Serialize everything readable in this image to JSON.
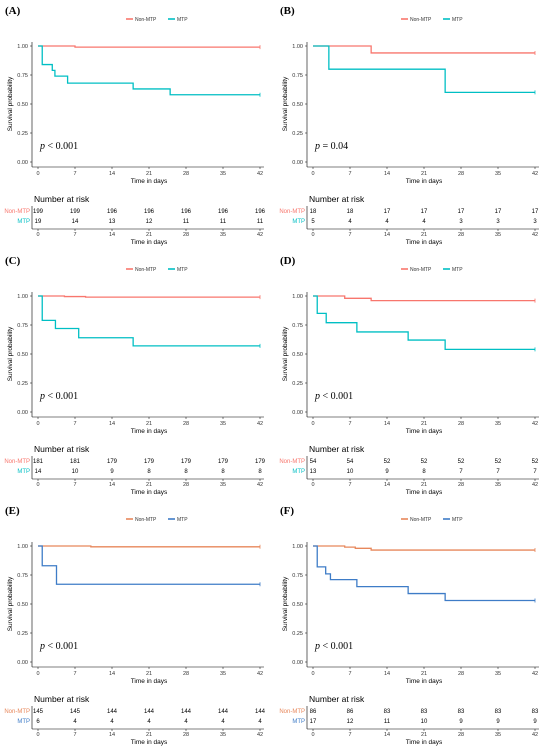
{
  "colors": {
    "non_mtp": "#F8766D",
    "mtp": "#00BFC4",
    "mtp_blue": "#3E7CC7",
    "non_mtp_orange": "#E7875B"
  },
  "chart_data": [
    {
      "type": "line",
      "step": true,
      "panel": "(A)",
      "legend": [
        "Non-MTP",
        "MTP"
      ],
      "legend_position": "top-center",
      "ylabel": "Survival probability",
      "xlabel": "Time in days",
      "xlim": [
        0,
        42
      ],
      "ylim": [
        0,
        1
      ],
      "xticks": [
        "0",
        "7",
        "14",
        "21",
        "28",
        "35",
        "42"
      ],
      "yticks": [
        "0.00",
        "0.25",
        "0.50",
        "0.75",
        "1.00"
      ],
      "pvalue_prefix": "p",
      "pvalue_text": " < 0.001",
      "series": [
        {
          "name": "Non-MTP",
          "color": "#F8766D",
          "x": [
            0,
            7,
            42
          ],
          "y": [
            1.0,
            0.99,
            0.99
          ]
        },
        {
          "name": "MTP",
          "color": "#00BFC4",
          "x": [
            0,
            0.8,
            2.7,
            3.2,
            5.6,
            18,
            25,
            42
          ],
          "y": [
            1.0,
            0.84,
            0.79,
            0.74,
            0.68,
            0.63,
            0.58,
            0.58
          ]
        }
      ],
      "risk_table": {
        "title": "Number at risk",
        "xlabel": "Time in days",
        "x": [
          "0",
          "7",
          "14",
          "21",
          "28",
          "35",
          "42"
        ],
        "rows": [
          {
            "group": "Non-MTP",
            "color": "#F8766D",
            "values": [
              "199",
              "199",
              "196",
              "196",
              "196",
              "196",
              "196"
            ]
          },
          {
            "group": "MTP",
            "color": "#00BFC4",
            "values": [
              "19",
              "14",
              "13",
              "12",
              "11",
              "11",
              "11"
            ]
          }
        ]
      }
    },
    {
      "type": "line",
      "step": true,
      "panel": "(B)",
      "legend": [
        "Non-MTP",
        "MTP"
      ],
      "legend_position": "top-center",
      "ylabel": "Survival probability",
      "xlabel": "Time in days",
      "xlim": [
        0,
        42
      ],
      "ylim": [
        0,
        1
      ],
      "xticks": [
        "0",
        "7",
        "14",
        "21",
        "28",
        "35",
        "42"
      ],
      "yticks": [
        "0.00",
        "0.25",
        "0.50",
        "0.75",
        "1.00"
      ],
      "pvalue_prefix": "p",
      "pvalue_text": " = 0.04",
      "series": [
        {
          "name": "Non-MTP",
          "color": "#F8766D",
          "x": [
            0,
            11,
            42
          ],
          "y": [
            1.0,
            0.94,
            0.94
          ]
        },
        {
          "name": "MTP",
          "color": "#00BFC4",
          "x": [
            0,
            3,
            25,
            42
          ],
          "y": [
            1.0,
            0.8,
            0.6,
            0.6
          ]
        }
      ],
      "risk_table": {
        "title": "Number at risk",
        "xlabel": "Time in days",
        "x": [
          "0",
          "7",
          "14",
          "21",
          "28",
          "35",
          "42"
        ],
        "rows": [
          {
            "group": "Non-MTP",
            "color": "#F8766D",
            "values": [
              "18",
              "18",
              "17",
              "17",
              "17",
              "17",
              "17"
            ]
          },
          {
            "group": "MTP",
            "color": "#00BFC4",
            "values": [
              "5",
              "4",
              "4",
              "4",
              "3",
              "3",
              "3"
            ]
          }
        ]
      }
    },
    {
      "type": "line",
      "step": true,
      "panel": "(C)",
      "legend": [
        "Non-MTP",
        "MTP"
      ],
      "legend_position": "top-center",
      "ylabel": "Survival probability",
      "xlabel": "Time in days",
      "xlim": [
        0,
        42
      ],
      "ylim": [
        0,
        1
      ],
      "xticks": [
        "0",
        "7",
        "14",
        "21",
        "28",
        "35",
        "42"
      ],
      "yticks": [
        "0.00",
        "0.25",
        "0.50",
        "0.75",
        "1.00"
      ],
      "pvalue_prefix": "p",
      "pvalue_text": " < 0.001",
      "series": [
        {
          "name": "Non-MTP",
          "color": "#F8766D",
          "x": [
            0,
            5,
            9,
            42
          ],
          "y": [
            1.0,
            0.995,
            0.99,
            0.99
          ]
        },
        {
          "name": "MTP",
          "color": "#00BFC4",
          "x": [
            0,
            0.8,
            3.3,
            7.7,
            18,
            42
          ],
          "y": [
            1.0,
            0.79,
            0.72,
            0.64,
            0.57,
            0.57
          ]
        }
      ],
      "risk_table": {
        "title": "Number at risk",
        "xlabel": "Time in days",
        "x": [
          "0",
          "7",
          "14",
          "21",
          "28",
          "35",
          "42"
        ],
        "rows": [
          {
            "group": "Non-MTP",
            "color": "#F8766D",
            "values": [
              "181",
              "181",
              "179",
              "179",
              "179",
              "179",
              "179"
            ]
          },
          {
            "group": "MTP",
            "color": "#00BFC4",
            "values": [
              "14",
              "10",
              "9",
              "8",
              "8",
              "8",
              "8"
            ]
          }
        ]
      }
    },
    {
      "type": "line",
      "step": true,
      "panel": "(D)",
      "legend": [
        "Non-MTP",
        "MTP"
      ],
      "legend_position": "top-center",
      "ylabel": "Survival probability",
      "xlabel": "Time in days",
      "xlim": [
        0,
        42
      ],
      "ylim": [
        0,
        1
      ],
      "xticks": [
        "0",
        "7",
        "14",
        "21",
        "28",
        "35",
        "42"
      ],
      "yticks": [
        "0.00",
        "0.25",
        "0.50",
        "0.75",
        "1.00"
      ],
      "pvalue_prefix": "p",
      "pvalue_text": " < 0.001",
      "series": [
        {
          "name": "Non-MTP",
          "color": "#F8766D",
          "x": [
            0,
            6,
            11,
            42
          ],
          "y": [
            1.0,
            0.98,
            0.96,
            0.96
          ]
        },
        {
          "name": "MTP",
          "color": "#00BFC4",
          "x": [
            0,
            0.8,
            2.5,
            8.3,
            18,
            25,
            42
          ],
          "y": [
            1.0,
            0.85,
            0.77,
            0.69,
            0.62,
            0.54,
            0.54
          ]
        }
      ],
      "risk_table": {
        "title": "Number at risk",
        "xlabel": "Time in days",
        "x": [
          "0",
          "7",
          "14",
          "21",
          "28",
          "35",
          "42"
        ],
        "rows": [
          {
            "group": "Non-MTP",
            "color": "#F8766D",
            "values": [
              "54",
              "54",
              "52",
              "52",
              "52",
              "52",
              "52"
            ]
          },
          {
            "group": "MTP",
            "color": "#00BFC4",
            "values": [
              "13",
              "10",
              "9",
              "8",
              "7",
              "7",
              "7"
            ]
          }
        ]
      }
    },
    {
      "type": "line",
      "step": true,
      "panel": "(E)",
      "legend": [
        "Non-MTP",
        "MTP"
      ],
      "legend_position": "top-center",
      "ylabel": "Survival probability",
      "xlabel": "Time in days",
      "xlim": [
        0,
        42
      ],
      "ylim": [
        0,
        1
      ],
      "xticks": [
        "0",
        "7",
        "14",
        "21",
        "28",
        "35",
        "42"
      ],
      "yticks": [
        "0.00",
        "0.25",
        "0.50",
        "0.75",
        "1.00"
      ],
      "pvalue_prefix": "p",
      "pvalue_text": " < 0.001",
      "series": [
        {
          "name": "Non-MTP",
          "color": "#E7875B",
          "x": [
            0,
            10,
            42
          ],
          "y": [
            1.0,
            0.993,
            0.993
          ]
        },
        {
          "name": "MTP",
          "color": "#3E7CC7",
          "x": [
            0,
            0.8,
            3.5,
            42
          ],
          "y": [
            1.0,
            0.83,
            0.67,
            0.67
          ]
        }
      ],
      "risk_table": {
        "title": "Number at risk",
        "xlabel": "Time in days",
        "x": [
          "0",
          "7",
          "14",
          "21",
          "28",
          "35",
          "42"
        ],
        "rows": [
          {
            "group": "Non-MTP",
            "color": "#E7875B",
            "values": [
              "145",
              "145",
              "144",
              "144",
              "144",
              "144",
              "144"
            ]
          },
          {
            "group": "MTP",
            "color": "#3E7CC7",
            "values": [
              "6",
              "4",
              "4",
              "4",
              "4",
              "4",
              "4"
            ]
          }
        ]
      }
    },
    {
      "type": "line",
      "step": true,
      "panel": "(F)",
      "legend": [
        "Non-MTP",
        "MTP"
      ],
      "legend_position": "top-center",
      "ylabel": "Survival probability",
      "xlabel": "Time in days",
      "xlim": [
        0,
        42
      ],
      "ylim": [
        0,
        1
      ],
      "xticks": [
        "0",
        "7",
        "14",
        "21",
        "28",
        "35",
        "42"
      ],
      "yticks": [
        "0.00",
        "0.25",
        "0.50",
        "0.75",
        "1.00"
      ],
      "pvalue_prefix": "p",
      "pvalue_text": " < 0.001",
      "series": [
        {
          "name": "Non-MTP",
          "color": "#E7875B",
          "x": [
            0,
            6,
            8,
            11,
            42
          ],
          "y": [
            1.0,
            0.99,
            0.98,
            0.965,
            0.965
          ]
        },
        {
          "name": "MTP",
          "color": "#3E7CC7",
          "x": [
            0,
            0.8,
            2.4,
            3.3,
            8.3,
            18,
            25,
            42
          ],
          "y": [
            1.0,
            0.82,
            0.76,
            0.71,
            0.65,
            0.59,
            0.53,
            0.53
          ]
        }
      ],
      "risk_table": {
        "title": "Number at risk",
        "xlabel": "Time in days",
        "x": [
          "0",
          "7",
          "14",
          "21",
          "28",
          "35",
          "42"
        ],
        "rows": [
          {
            "group": "Non-MTP",
            "color": "#E7875B",
            "values": [
              "86",
              "86",
              "83",
              "83",
              "83",
              "83",
              "83"
            ]
          },
          {
            "group": "MTP",
            "color": "#3E7CC7",
            "values": [
              "17",
              "12",
              "11",
              "10",
              "9",
              "9",
              "9"
            ]
          }
        ]
      }
    }
  ]
}
